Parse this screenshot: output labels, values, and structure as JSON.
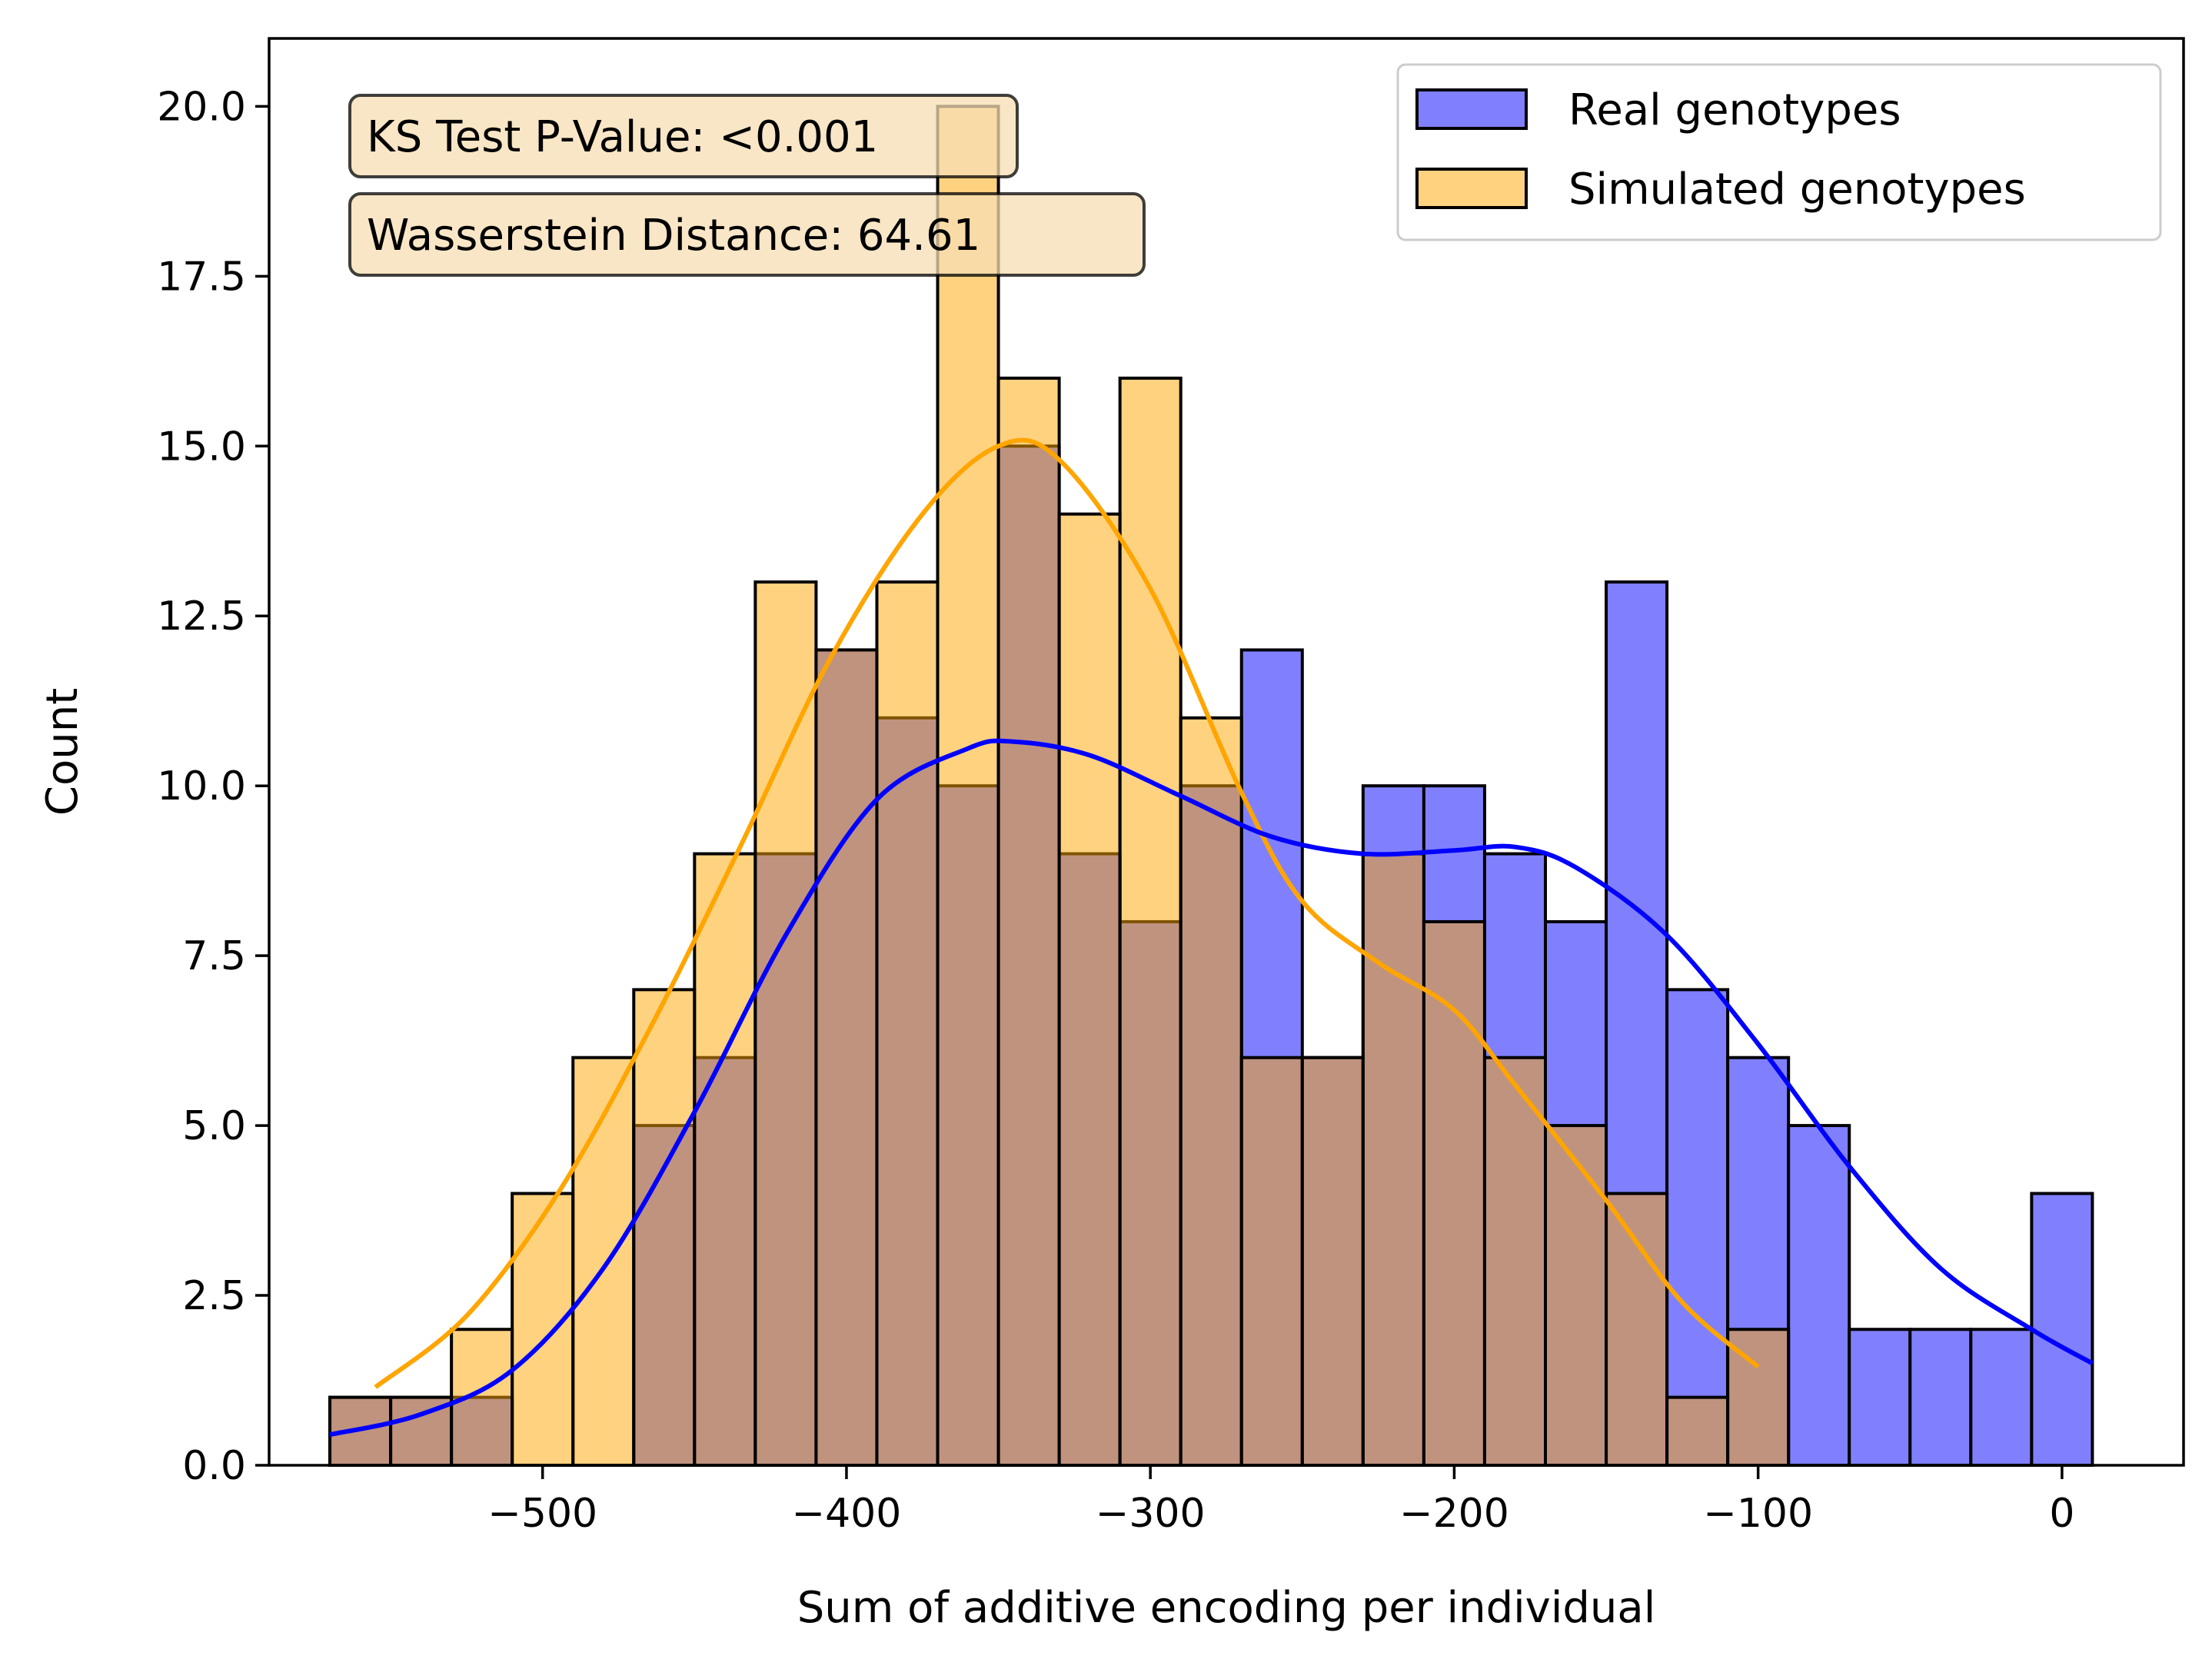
{
  "chart_data": {
    "type": "bar",
    "xlabel": "Sum of additive encoding per individual",
    "ylabel": "Count",
    "xlim": [
      -590,
      40
    ],
    "ylim": [
      0,
      21
    ],
    "x_ticks": [
      -500,
      -400,
      -300,
      -200,
      -100,
      0
    ],
    "x_tick_labels": [
      "−500",
      "−400",
      "−300",
      "−200",
      "−100",
      "0"
    ],
    "y_ticks": [
      0,
      2.5,
      5,
      7.5,
      10,
      12.5,
      15,
      17.5,
      20
    ],
    "y_tick_labels": [
      "0.0",
      "2.5",
      "5.0",
      "7.5",
      "10.0",
      "12.5",
      "15.0",
      "17.5",
      "20.0"
    ],
    "grid": false,
    "legend_position": "top-right",
    "annotations": [
      "KS Test P-Value: <0.001",
      "Wasserstein Distance: 64.61"
    ],
    "series": [
      {
        "name": "Real genotypes",
        "color": "#0000ff",
        "bar_fill": "#8080ff",
        "bins": [
          [
            -570,
            -550,
            1
          ],
          [
            -550,
            -530,
            1
          ],
          [
            -530,
            -510,
            1
          ],
          [
            -510,
            -490,
            0
          ],
          [
            -490,
            -470,
            0
          ],
          [
            -470,
            -450,
            5
          ],
          [
            -450,
            -430,
            6
          ],
          [
            -430,
            -410,
            9
          ],
          [
            -410,
            -390,
            12
          ],
          [
            -390,
            -370,
            11
          ],
          [
            -370,
            -350,
            10
          ],
          [
            -350,
            -330,
            15
          ],
          [
            -330,
            -310,
            9
          ],
          [
            -310,
            -290,
            8
          ],
          [
            -290,
            -270,
            10
          ],
          [
            -270,
            -250,
            12
          ],
          [
            -250,
            -230,
            6
          ],
          [
            -230,
            -210,
            10
          ],
          [
            -210,
            -190,
            10
          ],
          [
            -190,
            -170,
            9
          ],
          [
            -170,
            -150,
            8
          ],
          [
            -150,
            -130,
            13
          ],
          [
            -130,
            -110,
            7
          ],
          [
            -110,
            -90,
            6
          ],
          [
            -90,
            -70,
            5
          ],
          [
            -70,
            -50,
            2
          ],
          [
            -50,
            -30,
            2
          ],
          [
            -30,
            -10,
            2
          ],
          [
            -10,
            10,
            4
          ]
        ],
        "kde": [
          [
            -570,
            0.45
          ],
          [
            -540,
            0.75
          ],
          [
            -510,
            1.4
          ],
          [
            -480,
            2.9
          ],
          [
            -450,
            5.2
          ],
          [
            -420,
            7.8
          ],
          [
            -390,
            9.8
          ],
          [
            -360,
            10.55
          ],
          [
            -345,
            10.65
          ],
          [
            -320,
            10.45
          ],
          [
            -290,
            9.85
          ],
          [
            -260,
            9.25
          ],
          [
            -230,
            9.0
          ],
          [
            -200,
            9.05
          ],
          [
            -180,
            9.1
          ],
          [
            -160,
            8.8
          ],
          [
            -130,
            7.8
          ],
          [
            -100,
            6.2
          ],
          [
            -70,
            4.4
          ],
          [
            -40,
            2.9
          ],
          [
            -10,
            2.0
          ],
          [
            10,
            1.5
          ]
        ]
      },
      {
        "name": "Simulated genotypes",
        "color": "#ffa500",
        "bar_fill": "#ffd27f",
        "bins": [
          [
            -570,
            -550,
            1
          ],
          [
            -550,
            -530,
            1
          ],
          [
            -530,
            -510,
            2
          ],
          [
            -510,
            -490,
            4
          ],
          [
            -490,
            -470,
            6
          ],
          [
            -470,
            -450,
            7
          ],
          [
            -450,
            -430,
            9
          ],
          [
            -430,
            -410,
            13
          ],
          [
            -410,
            -390,
            12
          ],
          [
            -390,
            -370,
            13
          ],
          [
            -370,
            -350,
            20
          ],
          [
            -350,
            -330,
            16
          ],
          [
            -330,
            -310,
            14
          ],
          [
            -310,
            -290,
            16
          ],
          [
            -290,
            -270,
            11
          ],
          [
            -270,
            -250,
            6
          ],
          [
            -250,
            -230,
            6
          ],
          [
            -230,
            -210,
            9
          ],
          [
            -210,
            -190,
            8
          ],
          [
            -190,
            -170,
            6
          ],
          [
            -170,
            -150,
            5
          ],
          [
            -150,
            -130,
            4
          ],
          [
            -130,
            -110,
            1
          ],
          [
            -110,
            -90,
            2
          ]
        ],
        "kde": [
          [
            -555,
            1.15
          ],
          [
            -525,
            2.2
          ],
          [
            -495,
            4.0
          ],
          [
            -465,
            6.4
          ],
          [
            -435,
            9.1
          ],
          [
            -405,
            11.9
          ],
          [
            -375,
            14.0
          ],
          [
            -350,
            15.0
          ],
          [
            -330,
            14.8
          ],
          [
            -300,
            12.9
          ],
          [
            -270,
            9.9
          ],
          [
            -250,
            8.3
          ],
          [
            -225,
            7.4
          ],
          [
            -200,
            6.7
          ],
          [
            -180,
            5.6
          ],
          [
            -150,
            3.9
          ],
          [
            -125,
            2.4
          ],
          [
            -100,
            1.45
          ]
        ]
      }
    ]
  }
}
